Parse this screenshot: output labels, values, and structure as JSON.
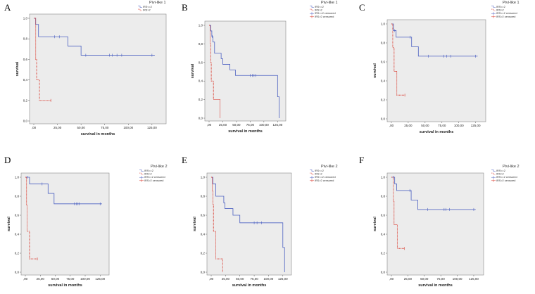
{
  "chart_data": [
    {
      "panel": "A",
      "type": "line",
      "legend_title": "Pivi-like 1",
      "xlabel": "survival in months",
      "ylabel": "survival",
      "xlim": [
        0,
        140
      ],
      "ylim": [
        0,
        1.0
      ],
      "xticks": [
        ",00",
        "25,00",
        "50,00",
        "75,00",
        "100,00",
        "125,00"
      ],
      "yticks": [
        "0,0",
        "0,2",
        "0,4",
        "0,6",
        "0,8",
        "1,0"
      ],
      "legend": "top-right",
      "series": [
        {
          "name": "IRS<=2",
          "color": "#4a5fc1",
          "style": "solid",
          "steps": [
            [
              0,
              1.0
            ],
            [
              2,
              0.94
            ],
            [
              5,
              0.82
            ],
            [
              25,
              0.82
            ],
            [
              36,
              0.73
            ],
            [
              50,
              0.64
            ],
            [
              128,
              0.64
            ]
          ],
          "censored": [
            [
              22,
              0.82
            ],
            [
              27,
              0.82
            ],
            [
              55,
              0.64
            ],
            [
              80,
              0.64
            ],
            [
              83,
              0.64
            ],
            [
              88,
              0.64
            ],
            [
              93,
              0.64
            ],
            [
              125,
              0.64
            ]
          ]
        },
        {
          "name": "IRS>2",
          "color": "#d93a2e",
          "style": "dotted",
          "steps": [
            [
              0,
              1.0
            ],
            [
              2,
              0.6
            ],
            [
              3,
              0.4
            ],
            [
              6,
              0.2
            ],
            [
              18,
              0.2
            ]
          ],
          "censored": [
            [
              18,
              0.2
            ]
          ]
        }
      ]
    },
    {
      "panel": "B",
      "type": "line",
      "legend_title": "Pivi-like 1",
      "xlabel": "survival in months",
      "ylabel": "survival",
      "xlim": [
        0,
        140
      ],
      "ylim": [
        0,
        1.0
      ],
      "xticks": [
        ",00",
        "25,00",
        "50,00",
        "75,00",
        "100,00",
        "125,00"
      ],
      "yticks": [
        "0,0",
        "0,2",
        "0,4",
        "0,6",
        "0,8",
        "1,0"
      ],
      "legend": "top-right",
      "series": [
        {
          "name": "IRS<=2",
          "color": "#4a5fc1",
          "style": "solid",
          "steps": [
            [
              0,
              1.0
            ],
            [
              3,
              0.94
            ],
            [
              5,
              0.88
            ],
            [
              7,
              0.82
            ],
            [
              10,
              0.7
            ],
            [
              22,
              0.64
            ],
            [
              25,
              0.58
            ],
            [
              38,
              0.52
            ],
            [
              48,
              0.46
            ],
            [
              125,
              0.23
            ],
            [
              128,
              0.0
            ]
          ],
          "censored": [
            [
              6,
              0.88
            ],
            [
              75,
              0.46
            ],
            [
              79,
              0.46
            ],
            [
              82,
              0.46
            ],
            [
              85,
              0.46
            ]
          ]
        },
        {
          "name": "IRS>2",
          "color": "#d93a2e",
          "style": "dotted",
          "steps": [
            [
              0,
              1.0
            ],
            [
              2,
              0.8
            ],
            [
              3,
              0.6
            ],
            [
              4,
              0.4
            ],
            [
              8,
              0.2
            ],
            [
              20,
              0.0
            ]
          ],
          "censored": []
        },
        {
          "name": "IRS<=2 censored",
          "color": "#4a5fc1",
          "style": "marker"
        },
        {
          "name": "IRS>2 censored",
          "color": "#d93a2e",
          "style": "marker"
        }
      ]
    },
    {
      "panel": "C",
      "type": "line",
      "legend_title": "Pivi-like 1",
      "xlabel": "survival in months",
      "ylabel": "survival",
      "xlim": [
        0,
        140
      ],
      "ylim": [
        0,
        1.0
      ],
      "xticks": [
        ",00",
        "25,00",
        "50,00",
        "75,00",
        "100,00",
        "125,00"
      ],
      "yticks": [
        "0,0",
        "0,2",
        "0,4",
        "0,6",
        "0,8",
        "1,0"
      ],
      "legend": "top-right",
      "series": [
        {
          "name": "IRS<=2",
          "color": "#4a5fc1",
          "style": "solid",
          "steps": [
            [
              0,
              1.0
            ],
            [
              3,
              0.93
            ],
            [
              7,
              0.86
            ],
            [
              30,
              0.76
            ],
            [
              40,
              0.66
            ],
            [
              128,
              0.66
            ]
          ],
          "censored": [
            [
              5,
              0.93
            ],
            [
              28,
              0.86
            ],
            [
              55,
              0.66
            ],
            [
              78,
              0.66
            ],
            [
              82,
              0.66
            ],
            [
              88,
              0.66
            ],
            [
              125,
              0.66
            ]
          ]
        },
        {
          "name": "IRS>2",
          "color": "#d93a2e",
          "style": "dotted",
          "steps": [
            [
              0,
              1.0
            ],
            [
              2,
              0.75
            ],
            [
              4,
              0.5
            ],
            [
              8,
              0.25
            ],
            [
              20,
              0.25
            ]
          ],
          "censored": [
            [
              20,
              0.25
            ]
          ]
        },
        {
          "name": "IRS<=2 censored",
          "color": "#4a5fc1",
          "style": "marker"
        },
        {
          "name": "IRS>2 censored",
          "color": "#d93a2e",
          "style": "marker"
        }
      ]
    },
    {
      "panel": "D",
      "type": "line",
      "legend_title": "Pivi-like 2",
      "xlabel": "survival in months",
      "ylabel": "survival",
      "xlim": [
        0,
        140
      ],
      "ylim": [
        0,
        1.0
      ],
      "xticks": [
        ",00",
        "25,00",
        "50,00",
        "75,00",
        "100,00",
        "125,00"
      ],
      "yticks": [
        "0,0",
        "0,2",
        "0,4",
        "0,6",
        "0,8",
        "1,0"
      ],
      "legend": "top-right",
      "series": [
        {
          "name": "IRS<=2",
          "color": "#4a5fc1",
          "style": "solid",
          "steps": [
            [
              0,
              1.0
            ],
            [
              7,
              0.93
            ],
            [
              38,
              0.83
            ],
            [
              48,
              0.72
            ],
            [
              128,
              0.72
            ]
          ],
          "censored": [
            [
              3,
              1.0
            ],
            [
              28,
              0.93
            ],
            [
              82,
              0.72
            ],
            [
              85,
              0.72
            ],
            [
              88,
              0.72
            ],
            [
              90,
              0.72
            ],
            [
              125,
              0.72
            ]
          ]
        },
        {
          "name": "IRS>2",
          "color": "#d93a2e",
          "style": "dotted",
          "steps": [
            [
              0,
              1.0
            ],
            [
              2,
              0.71
            ],
            [
              3,
              0.43
            ],
            [
              7,
              0.14
            ],
            [
              20,
              0.14
            ]
          ],
          "censored": [
            [
              20,
              0.14
            ]
          ]
        },
        {
          "name": "IRS<=2 censored",
          "color": "#4a5fc1",
          "style": "marker"
        },
        {
          "name": "IRS>2 censored",
          "color": "#d93a2e",
          "style": "marker"
        }
      ]
    },
    {
      "panel": "E",
      "type": "line",
      "legend_title": "Pivi-like 2",
      "xlabel": "survival in months",
      "ylabel": "survival",
      "xlim": [
        0,
        140
      ],
      "ylim": [
        0,
        1.0
      ],
      "xticks": [
        ",00",
        "25,00",
        "50,00",
        "75,00",
        "100,00",
        "125,00"
      ],
      "yticks": [
        "0,0",
        "0,2",
        "0,4",
        "0,6",
        "0,8",
        "1,0"
      ],
      "legend": "top-right",
      "series": [
        {
          "name": "IRS<=2",
          "color": "#4a5fc1",
          "style": "solid",
          "steps": [
            [
              0,
              1.0
            ],
            [
              3,
              0.93
            ],
            [
              8,
              0.8
            ],
            [
              22,
              0.73
            ],
            [
              24,
              0.67
            ],
            [
              38,
              0.6
            ],
            [
              50,
              0.52
            ],
            [
              125,
              0.26
            ],
            [
              128,
              0.0
            ]
          ],
          "censored": [
            [
              75,
              0.52
            ],
            [
              80,
              0.52
            ],
            [
              88,
              0.52
            ]
          ]
        },
        {
          "name": "IRS>2",
          "color": "#d93a2e",
          "style": "dotted",
          "steps": [
            [
              0,
              1.0
            ],
            [
              2,
              0.86
            ],
            [
              3,
              0.71
            ],
            [
              4,
              0.43
            ],
            [
              8,
              0.14
            ],
            [
              20,
              0.0
            ]
          ],
          "censored": []
        },
        {
          "name": "IRS<=2 censored",
          "color": "#4a5fc1",
          "style": "marker"
        },
        {
          "name": "IRS>2 censored",
          "color": "#d93a2e",
          "style": "marker"
        }
      ]
    },
    {
      "panel": "F",
      "type": "line",
      "legend_title": "Pivi-like 2",
      "xlabel": "survival in months",
      "ylabel": "survival",
      "xlim": [
        0,
        140
      ],
      "ylim": [
        0,
        1.0
      ],
      "xticks": [
        ",00",
        "25,00",
        "50,00",
        "75,00",
        "100,00",
        "125,00"
      ],
      "yticks": [
        "0,0",
        "0,2",
        "0,4",
        "0,6",
        "0,8",
        "1,0"
      ],
      "legend": "top-right",
      "series": [
        {
          "name": "IRS<=2",
          "color": "#4a5fc1",
          "style": "solid",
          "steps": [
            [
              0,
              1.0
            ],
            [
              5,
              0.93
            ],
            [
              8,
              0.86
            ],
            [
              30,
              0.76
            ],
            [
              40,
              0.66
            ],
            [
              128,
              0.66
            ]
          ],
          "censored": [
            [
              3,
              1.0
            ],
            [
              28,
              0.86
            ],
            [
              55,
              0.66
            ],
            [
              80,
              0.66
            ],
            [
              83,
              0.66
            ],
            [
              88,
              0.66
            ],
            [
              125,
              0.66
            ]
          ]
        },
        {
          "name": "IRS>2",
          "color": "#d93a2e",
          "style": "dotted",
          "steps": [
            [
              0,
              1.0
            ],
            [
              3,
              0.75
            ],
            [
              4,
              0.5
            ],
            [
              9,
              0.25
            ],
            [
              20,
              0.25
            ]
          ],
          "censored": [
            [
              20,
              0.25
            ]
          ]
        },
        {
          "name": "IRS<=2 censored",
          "color": "#4a5fc1",
          "style": "marker"
        },
        {
          "name": "IRS>2 censored",
          "color": "#d93a2e",
          "style": "marker"
        }
      ]
    }
  ]
}
